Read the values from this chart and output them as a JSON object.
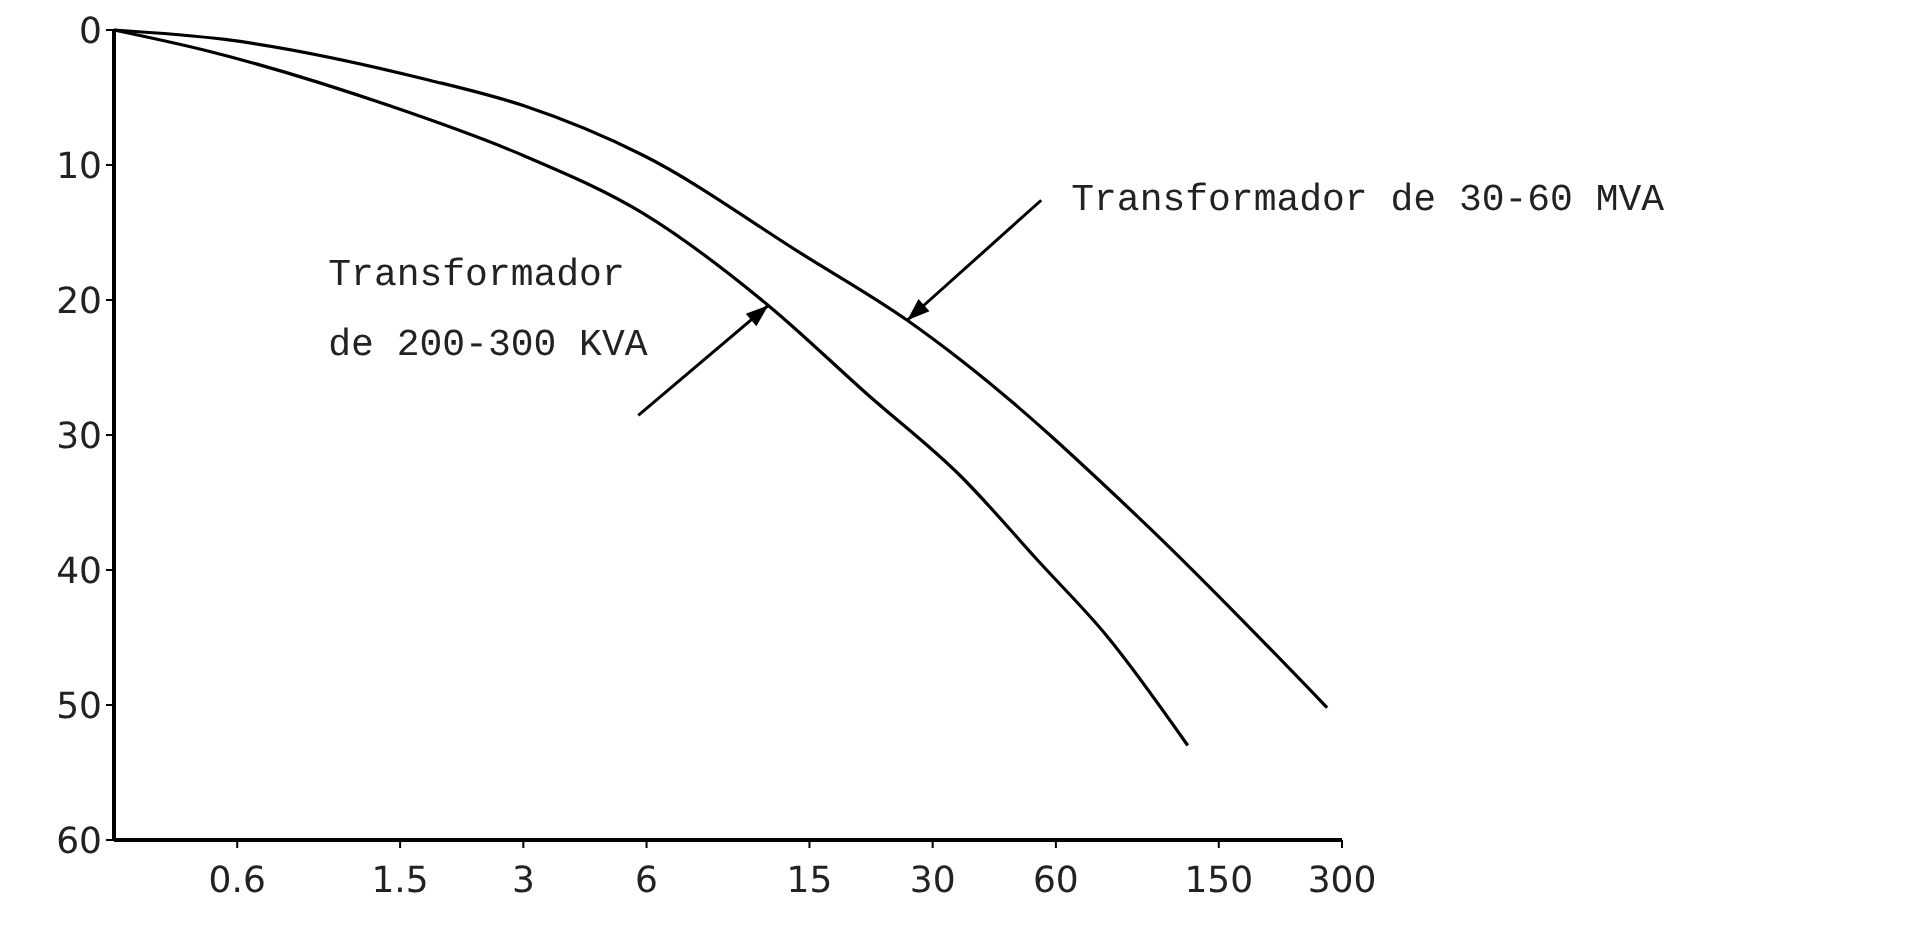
{
  "chart_data": {
    "type": "line",
    "log": "x",
    "xlim": [
      0.3,
      300
    ],
    "xticks": [
      0.6,
      1.5,
      3,
      6,
      15,
      30,
      60,
      150,
      300
    ],
    "ylim": [
      60,
      0
    ],
    "yticks": [
      0,
      10,
      20,
      30,
      40,
      50,
      60
    ],
    "grid": false,
    "marker": "none",
    "line_style": "solid",
    "series": [
      {
        "color": "#000000",
        "x": [
          0.3,
          0.56,
          1.76,
          3,
          5.9,
          14.4,
          26,
          35,
          97,
          276
        ],
        "values": [
          0,
          0.7,
          3.7,
          5.6,
          9.3,
          16.6,
          21.5,
          24.4,
          36.3,
          50.2
        ]
      },
      {
        "color": "#000000",
        "x": [
          0.3,
          0.5,
          1.41,
          3,
          5.9,
          11.9,
          20.8,
          35,
          55,
          80,
          126
        ],
        "values": [
          0,
          1.5,
          5.6,
          9.3,
          13.6,
          20.4,
          27,
          33,
          39.5,
          44.9,
          53
        ]
      }
    ],
    "annotations": [
      {
        "text": "Transformador de 30-60 MVA",
        "x": 26,
        "y": 21.5
      },
      {
        "text": "Transformador de 200-300 KVA",
        "x": 11.9,
        "y": 20.4
      }
    ]
  }
}
